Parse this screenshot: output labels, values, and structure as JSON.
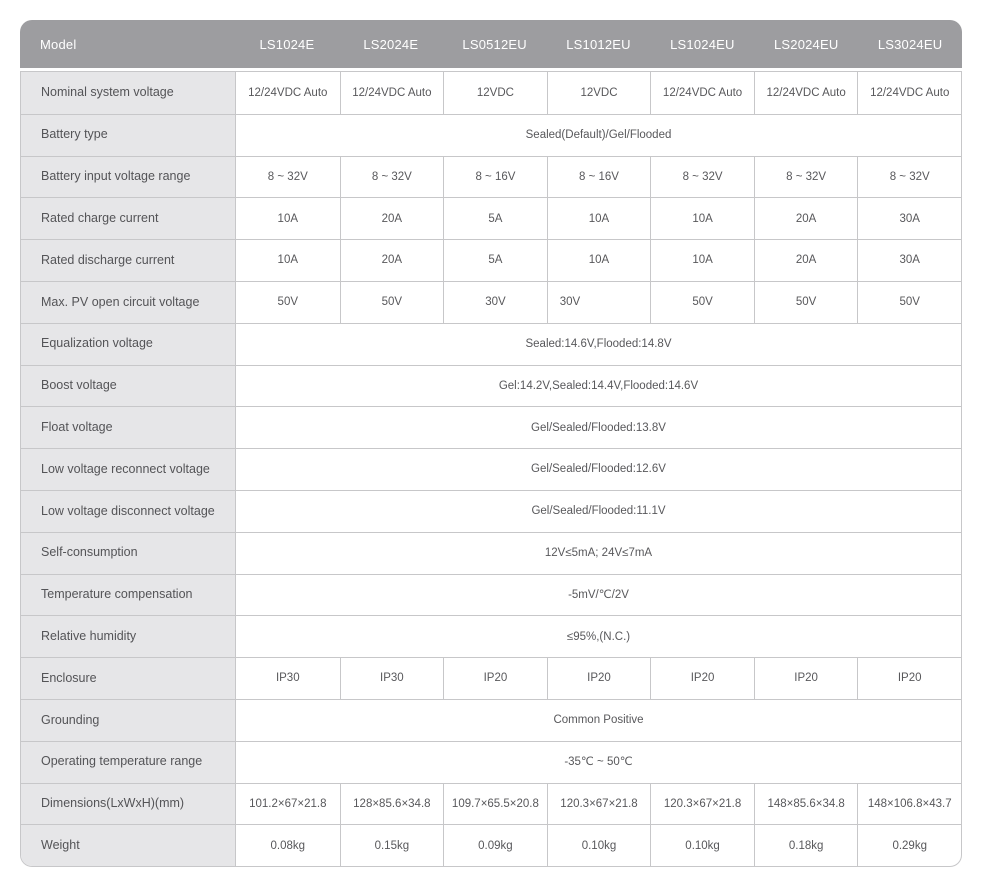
{
  "colors": {
    "header_bg": "#9d9da0",
    "header_text": "#ffffff",
    "label_bg": "#e6e6e8",
    "row_bg": "#ffffff",
    "border": "#c7c7c9",
    "text": "#58585b",
    "label_text": "#545457",
    "page_bg": "#ffffff"
  },
  "table": {
    "header": {
      "model_label": "Model",
      "columns": [
        "LS1024E",
        "LS2024E",
        "LS0512EU",
        "LS1012EU",
        "LS1024EU",
        "LS2024EU",
        "LS3024EU"
      ]
    },
    "rows": [
      {
        "label": "Nominal system voltage",
        "values": [
          "12/24VDC Auto",
          "12/24VDC Auto",
          "12VDC",
          "12VDC",
          "12/24VDC Auto",
          "12/24VDC Auto",
          "12/24VDC Auto"
        ]
      },
      {
        "label": "Battery type",
        "span": "Sealed(Default)/Gel/Flooded"
      },
      {
        "label": "Battery input voltage range",
        "values": [
          "8 ~ 32V",
          "8 ~ 32V",
          "8 ~ 16V",
          "8 ~ 16V",
          "8 ~ 32V",
          "8 ~ 32V",
          "8 ~ 32V"
        ]
      },
      {
        "label": "Rated charge current",
        "values": [
          "10A",
          "20A",
          "5A",
          "10A",
          "10A",
          "20A",
          "30A"
        ]
      },
      {
        "label": "Rated discharge current",
        "values": [
          "10A",
          "20A",
          "5A",
          "10A",
          "10A",
          "20A",
          "30A"
        ]
      },
      {
        "label": "Max. PV open circuit voltage",
        "values": [
          "50V",
          "50V",
          "30V",
          "30V",
          "50V",
          "50V",
          "50V"
        ],
        "left_aligned_cells": [
          3
        ]
      },
      {
        "label": "Equalization voltage",
        "span": "Sealed:14.6V,Flooded:14.8V"
      },
      {
        "label": "Boost voltage",
        "span": "Gel:14.2V,Sealed:14.4V,Flooded:14.6V"
      },
      {
        "label": "Float voltage",
        "span": "Gel/Sealed/Flooded:13.8V"
      },
      {
        "label": "Low voltage reconnect voltage",
        "span": "Gel/Sealed/Flooded:12.6V"
      },
      {
        "label": "Low voltage disconnect voltage",
        "span": "Gel/Sealed/Flooded:11.1V"
      },
      {
        "label": "Self-consumption",
        "span": "12V≤5mA; 24V≤7mA"
      },
      {
        "label": "Temperature compensation",
        "span": "-5mV/℃/2V"
      },
      {
        "label": "Relative humidity",
        "span": "≤95%,(N.C.)"
      },
      {
        "label": "Enclosure",
        "values": [
          "IP30",
          "IP30",
          "IP20",
          "IP20",
          "IP20",
          "IP20",
          "IP20"
        ]
      },
      {
        "label": "Grounding",
        "span": "Common Positive"
      },
      {
        "label": "Operating temperature range",
        "span": "-35℃ ~ 50℃"
      },
      {
        "label": "Dimensions(LxWxH)(mm)",
        "values": [
          "101.2×67×21.8",
          "128×85.6×34.8",
          "109.7×65.5×20.8",
          "120.3×67×21.8",
          "120.3×67×21.8",
          "148×85.6×34.8",
          "148×106.8×43.7"
        ]
      },
      {
        "label": "Weight",
        "values": [
          "0.08kg",
          "0.15kg",
          "0.09kg",
          "0.10kg",
          "0.10kg",
          "0.18kg",
          "0.29kg"
        ]
      }
    ]
  }
}
